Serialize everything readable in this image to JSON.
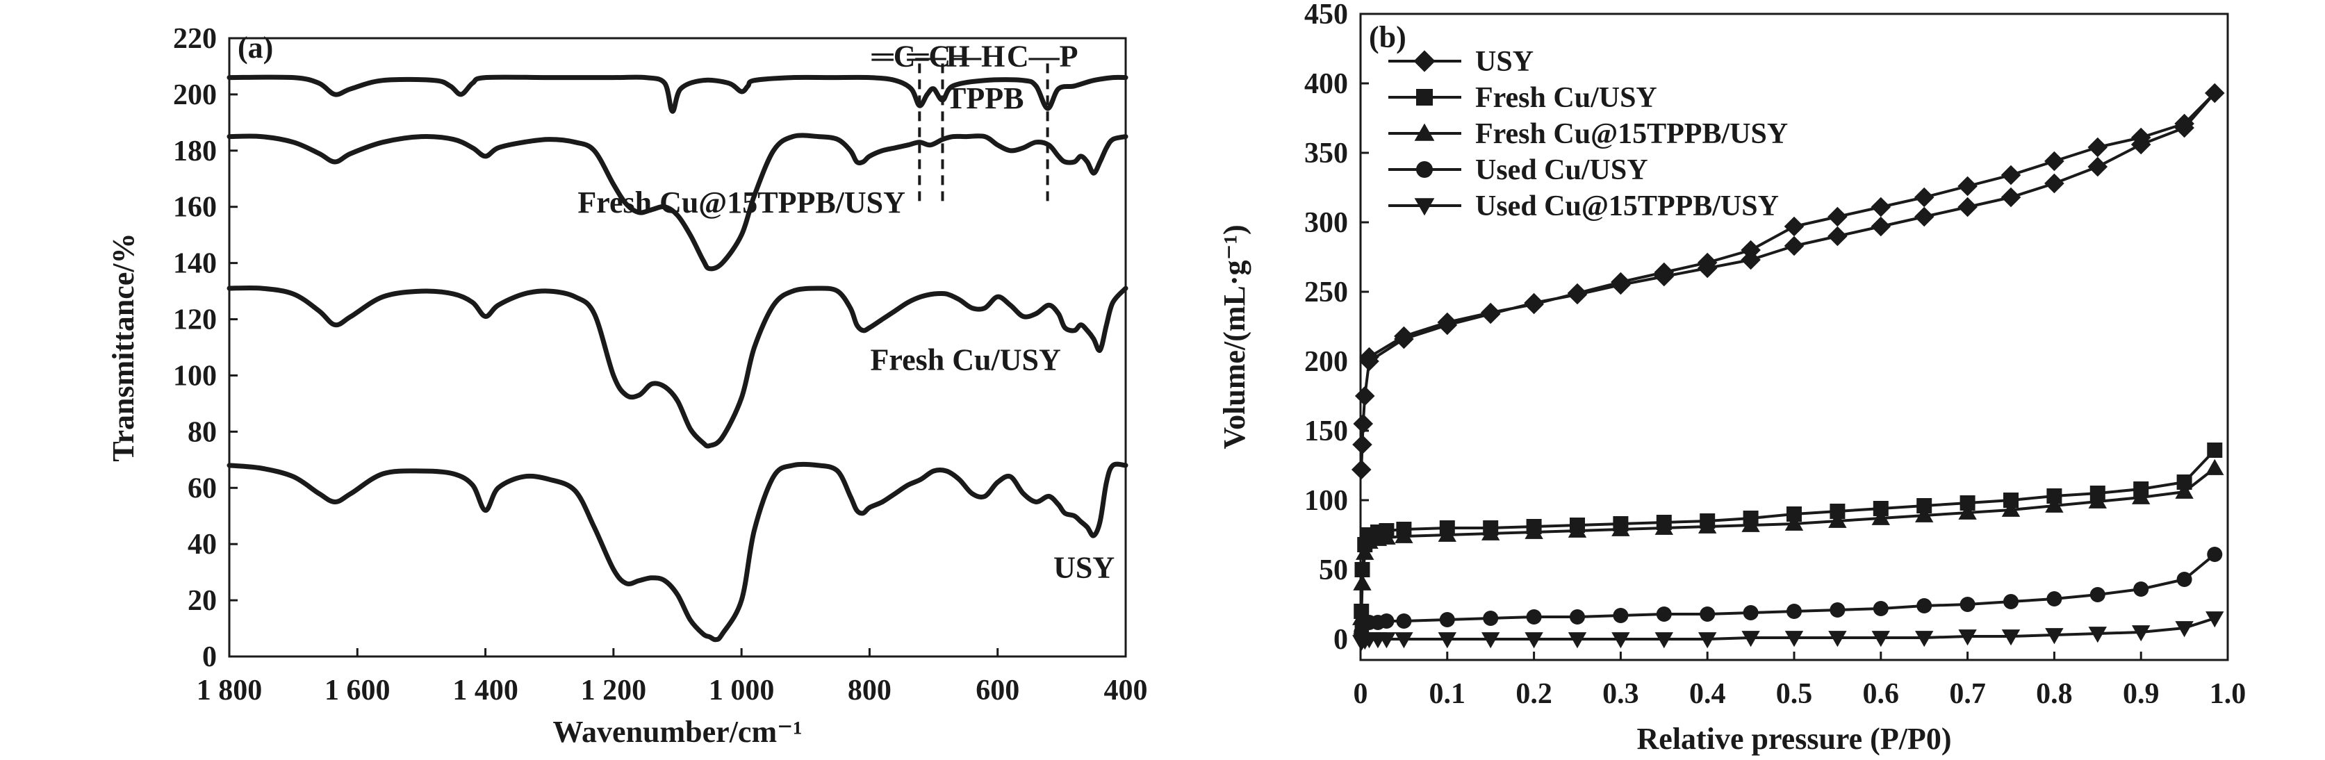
{
  "chart_data": [
    {
      "type": "line",
      "panel_label": "(a)",
      "xlabel": "Wavenumber/cm⁻¹",
      "ylabel": "Transmittance/%",
      "xlim": [
        1800,
        400
      ],
      "ylim": [
        0,
        220
      ],
      "x_reversed": true,
      "xticks": [
        1800,
        1600,
        1400,
        1200,
        1000,
        800,
        600,
        400
      ],
      "xtick_labels": [
        "1 800",
        "1 600",
        "1 400",
        "1 200",
        "1 000",
        "800",
        "600",
        "400"
      ],
      "yticks": [
        0,
        20,
        40,
        60,
        80,
        100,
        120,
        140,
        160,
        180,
        200,
        220
      ],
      "ytick_labels": [
        "0",
        "20",
        "40",
        "60",
        "80",
        "100",
        "120",
        "140",
        "160",
        "180",
        "200",
        "220"
      ],
      "grid": false,
      "annotations": [
        {
          "text": "═C—H",
          "x": 720,
          "y": 210
        },
        {
          "text": "═C—H",
          "x": 665,
          "y": 210
        },
        {
          "text": "C—P",
          "x": 530,
          "y": 210
        }
      ],
      "marker_lines_x": [
        722,
        686,
        522
      ],
      "series": [
        {
          "name": "TPPB",
          "label_pos": [
            620,
            195
          ],
          "x": [
            1800,
            1700,
            1660,
            1635,
            1610,
            1560,
            1480,
            1455,
            1438,
            1420,
            1400,
            1300,
            1200,
            1150,
            1120,
            1108,
            1095,
            1060,
            1020,
            1000,
            990,
            980,
            920,
            860,
            800,
            760,
            735,
            722,
            710,
            700,
            686,
            670,
            620,
            560,
            540,
            522,
            505,
            480,
            450,
            420,
            400
          ],
          "y": [
            206,
            206,
            204,
            200,
            202,
            205,
            205,
            203,
            200,
            204,
            206,
            206,
            206,
            206,
            204,
            194,
            202,
            205,
            204,
            201,
            203,
            205,
            206,
            206,
            206,
            205,
            202,
            196,
            200,
            202,
            198,
            203,
            205,
            205,
            203,
            195,
            202,
            203,
            205,
            206,
            206
          ]
        },
        {
          "name": "Fresh Cu@15TPPB/USY",
          "label_pos": [
            1000,
            158
          ],
          "x": [
            1800,
            1750,
            1700,
            1660,
            1635,
            1610,
            1560,
            1500,
            1450,
            1420,
            1400,
            1380,
            1340,
            1300,
            1260,
            1230,
            1200,
            1180,
            1160,
            1140,
            1120,
            1100,
            1080,
            1060,
            1050,
            1030,
            1000,
            980,
            950,
            920,
            880,
            850,
            830,
            820,
            810,
            800,
            780,
            760,
            740,
            722,
            705,
            686,
            670,
            650,
            620,
            600,
            580,
            560,
            540,
            520,
            505,
            495,
            480,
            470,
            460,
            450,
            440,
            430,
            420,
            400
          ],
          "y": [
            185,
            185,
            183,
            179,
            176,
            179,
            183,
            185,
            184,
            181,
            178,
            181,
            183,
            184,
            183,
            180,
            168,
            161,
            158,
            159,
            160,
            157,
            150,
            141,
            138,
            140,
            150,
            164,
            180,
            185,
            185,
            184,
            180,
            176,
            176,
            178,
            180,
            181,
            182,
            183,
            182,
            184,
            185,
            185,
            185,
            182,
            180,
            181,
            183,
            182,
            178,
            176,
            176,
            178,
            176,
            172,
            176,
            181,
            184,
            185
          ]
        },
        {
          "name": "Fresh Cu/USY",
          "label_pos": [
            650,
            102
          ],
          "x": [
            1800,
            1750,
            1700,
            1660,
            1635,
            1610,
            1560,
            1500,
            1450,
            1420,
            1400,
            1380,
            1340,
            1300,
            1260,
            1230,
            1200,
            1180,
            1160,
            1140,
            1120,
            1100,
            1080,
            1060,
            1050,
            1030,
            1000,
            980,
            950,
            920,
            880,
            850,
            830,
            820,
            810,
            800,
            780,
            760,
            740,
            720,
            700,
            680,
            660,
            640,
            620,
            600,
            580,
            560,
            540,
            520,
            505,
            495,
            480,
            470,
            460,
            450,
            440,
            430,
            420,
            400
          ],
          "y": [
            131,
            131,
            129,
            123,
            118,
            121,
            128,
            130,
            129,
            126,
            121,
            125,
            129,
            130,
            128,
            122,
            100,
            93,
            93,
            97,
            96,
            91,
            81,
            76,
            75,
            78,
            92,
            110,
            125,
            130,
            131,
            130,
            124,
            118,
            116,
            117,
            120,
            123,
            126,
            128,
            129,
            129,
            127,
            124,
            124,
            128,
            125,
            121,
            122,
            125,
            122,
            117,
            116,
            118,
            116,
            113,
            109,
            118,
            126,
            131
          ]
        },
        {
          "name": "USY",
          "label_pos": [
            465,
            28
          ],
          "x": [
            1800,
            1750,
            1700,
            1660,
            1635,
            1610,
            1560,
            1500,
            1450,
            1420,
            1400,
            1380,
            1340,
            1300,
            1260,
            1230,
            1200,
            1180,
            1160,
            1140,
            1120,
            1100,
            1080,
            1060,
            1050,
            1040,
            1030,
            1000,
            980,
            950,
            920,
            880,
            850,
            830,
            820,
            810,
            800,
            780,
            760,
            740,
            720,
            700,
            680,
            660,
            640,
            620,
            600,
            580,
            560,
            540,
            520,
            505,
            495,
            480,
            470,
            460,
            450,
            440,
            430,
            420,
            400
          ],
          "y": [
            68,
            67,
            64,
            58,
            55,
            58,
            65,
            66,
            65,
            61,
            52,
            60,
            64,
            63,
            59,
            46,
            31,
            26,
            27,
            28,
            27,
            22,
            13,
            8,
            7,
            6,
            8,
            20,
            45,
            64,
            68,
            68,
            66,
            57,
            52,
            51,
            53,
            55,
            58,
            61,
            63,
            66,
            66,
            63,
            58,
            57,
            62,
            64,
            58,
            55,
            57,
            54,
            51,
            50,
            48,
            46,
            43,
            48,
            62,
            68,
            68
          ]
        }
      ]
    },
    {
      "type": "line",
      "panel_label": "(b)",
      "xlabel": "Relative pressure (P/P0)",
      "ylabel": "Volume/(mL·g⁻¹)",
      "xlim": [
        0,
        1.0
      ],
      "ylim": [
        -15,
        450
      ],
      "xticks": [
        0,
        0.1,
        0.2,
        0.3,
        0.4,
        0.5,
        0.6,
        0.7,
        0.8,
        0.9,
        1.0
      ],
      "xtick_labels": [
        "0",
        "0.1",
        "0.2",
        "0.3",
        "0.4",
        "0.5",
        "0.6",
        "0.7",
        "0.8",
        "0.9",
        "1.0"
      ],
      "yticks": [
        0,
        50,
        100,
        150,
        200,
        250,
        300,
        350,
        400,
        450
      ],
      "ytick_labels": [
        "0",
        "50",
        "100",
        "150",
        "200",
        "250",
        "300",
        "350",
        "400",
        "450"
      ],
      "grid": false,
      "legend": "top-left",
      "series": [
        {
          "name": "USY",
          "marker": "diamond",
          "x": [
            0.001,
            0.002,
            0.003,
            0.005,
            0.01,
            0.05,
            0.1,
            0.15,
            0.2,
            0.25,
            0.3,
            0.35,
            0.4,
            0.45,
            0.5,
            0.55,
            0.6,
            0.65,
            0.7,
            0.75,
            0.8,
            0.85,
            0.9,
            0.95,
            0.985,
            0.95,
            0.9,
            0.85,
            0.8,
            0.75,
            0.7,
            0.65,
            0.6,
            0.55,
            0.5,
            0.45,
            0.4,
            0.35,
            0.3,
            0.25,
            0.2,
            0.15,
            0.1,
            0.05,
            0.01
          ],
          "y": [
            122,
            140,
            155,
            175,
            200,
            216,
            226,
            234,
            242,
            248,
            255,
            261,
            267,
            273,
            283,
            290,
            297,
            304,
            311,
            318,
            328,
            340,
            356,
            368,
            393,
            371,
            361,
            354,
            344,
            334,
            326,
            318,
            311,
            304,
            297,
            280,
            271,
            264,
            257,
            249,
            241,
            235,
            228,
            218,
            203
          ]
        },
        {
          "name": "Fresh Cu/USY",
          "marker": "square",
          "x": [
            0.001,
            0.002,
            0.005,
            0.01,
            0.02,
            0.03,
            0.05,
            0.1,
            0.15,
            0.2,
            0.25,
            0.3,
            0.35,
            0.4,
            0.45,
            0.5,
            0.55,
            0.6,
            0.65,
            0.7,
            0.75,
            0.8,
            0.85,
            0.9,
            0.95,
            0.985
          ],
          "y": [
            20,
            50,
            68,
            75,
            77,
            78,
            79,
            80,
            80,
            81,
            82,
            83,
            84,
            85,
            87,
            90,
            92,
            94,
            96,
            98,
            100,
            103,
            105,
            108,
            113,
            136
          ]
        },
        {
          "name": "Fresh Cu@15TPPB/USY",
          "marker": "triangle-up",
          "x": [
            0.001,
            0.002,
            0.005,
            0.01,
            0.02,
            0.03,
            0.05,
            0.1,
            0.15,
            0.2,
            0.25,
            0.3,
            0.35,
            0.4,
            0.45,
            0.5,
            0.55,
            0.6,
            0.65,
            0.7,
            0.75,
            0.8,
            0.85,
            0.9,
            0.95,
            0.985
          ],
          "y": [
            15,
            40,
            62,
            70,
            72,
            73,
            74,
            75,
            76,
            77,
            78,
            79,
            80,
            81,
            82,
            83,
            85,
            87,
            89,
            91,
            93,
            96,
            99,
            102,
            106,
            123
          ]
        },
        {
          "name": "Used Cu/USY",
          "marker": "circle",
          "x": [
            0.001,
            0.002,
            0.005,
            0.01,
            0.02,
            0.03,
            0.05,
            0.1,
            0.15,
            0.2,
            0.25,
            0.3,
            0.35,
            0.4,
            0.45,
            0.5,
            0.55,
            0.6,
            0.65,
            0.7,
            0.75,
            0.8,
            0.85,
            0.9,
            0.95,
            0.985
          ],
          "y": [
            5,
            9,
            11,
            12,
            12,
            13,
            13,
            14,
            15,
            16,
            16,
            17,
            18,
            18,
            19,
            20,
            21,
            22,
            24,
            25,
            27,
            29,
            32,
            36,
            43,
            61
          ]
        },
        {
          "name": "Used Cu@15TPPB/USY",
          "marker": "triangle-down",
          "x": [
            0.001,
            0.002,
            0.005,
            0.01,
            0.02,
            0.03,
            0.05,
            0.1,
            0.15,
            0.2,
            0.25,
            0.3,
            0.35,
            0.4,
            0.45,
            0.5,
            0.55,
            0.6,
            0.65,
            0.7,
            0.75,
            0.8,
            0.85,
            0.9,
            0.95,
            0.985
          ],
          "y": [
            -2,
            -1,
            -1,
            0,
            0,
            0,
            0,
            0,
            0,
            0,
            0,
            0,
            0,
            0,
            1,
            1,
            1,
            1,
            1,
            2,
            2,
            3,
            4,
            5,
            8,
            15
          ]
        }
      ]
    }
  ]
}
